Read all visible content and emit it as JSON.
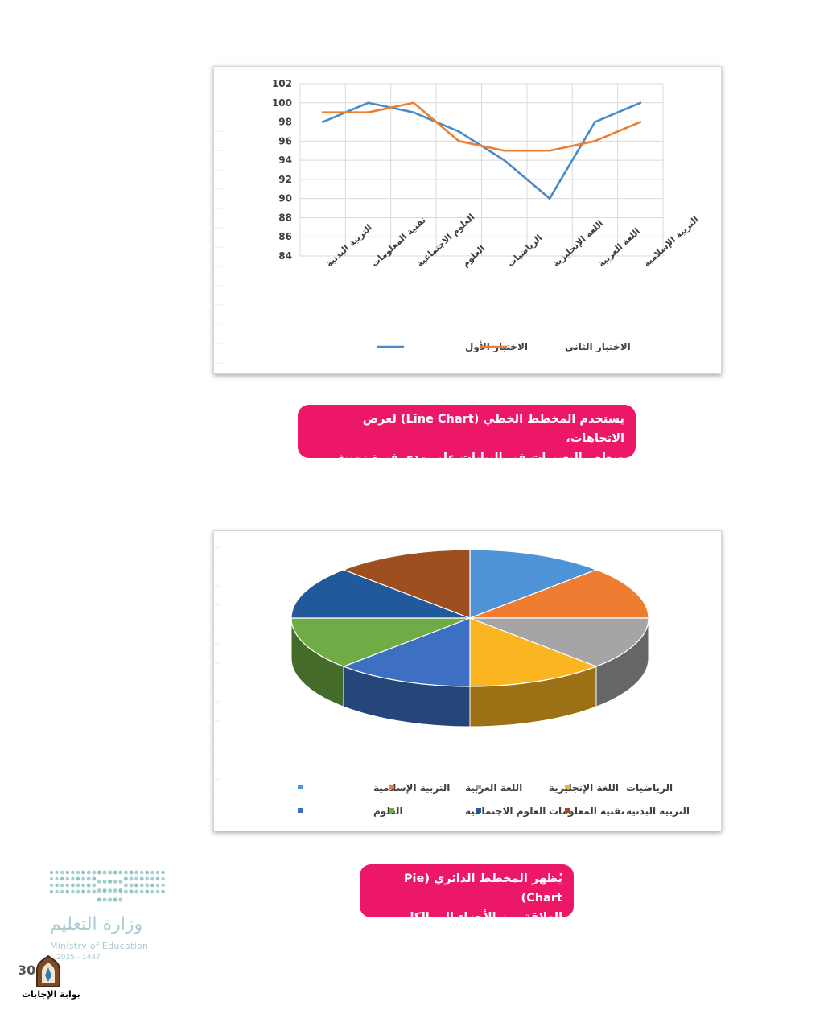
{
  "chart_data": [
    {
      "type": "line",
      "categories": [
        "التربية البدنية",
        "تقنية المعلومات",
        "العلوم الاجتماعية",
        "العلوم",
        "الرياضيات",
        "اللغة الإنجليزية",
        "اللغة العربية",
        "التربية الإسلامية"
      ],
      "series": [
        {
          "name": "الاختبار الأول",
          "color": "#4a8ac8",
          "values": [
            98,
            100,
            99,
            97,
            94,
            90,
            98,
            100
          ]
        },
        {
          "name": "الاختبار الثاني",
          "color": "#ee7d31",
          "values": [
            99,
            99,
            100,
            96,
            95,
            95,
            96,
            98
          ]
        }
      ],
      "ylim": [
        84,
        102
      ],
      "yticks": [
        "84",
        "86",
        "88",
        "90",
        "92",
        "94",
        "96",
        "98",
        "100",
        "102"
      ],
      "grid": true,
      "legend": "bottom"
    },
    {
      "type": "pie",
      "style": "3d",
      "slices": [
        {
          "label": "التربية الإسلامية",
          "value": 12.5,
          "color": "#4e92d8"
        },
        {
          "label": "اللغة العربية",
          "value": 12.5,
          "color": "#ef7d31"
        },
        {
          "label": "اللغة الإنجليزية",
          "value": 12.5,
          "color": "#a5a5a5"
        },
        {
          "label": "الرياضيات",
          "value": 12.5,
          "color": "#fbb520"
        },
        {
          "label": "العلوم",
          "value": 12.5,
          "color": "#3d6fc2"
        },
        {
          "label": "العلوم الاجتماعية",
          "value": 12.5,
          "color": "#6fac46"
        },
        {
          "label": "تقنية المعلومات",
          "value": 12.5,
          "color": "#22599a"
        },
        {
          "label": "التربية البدنية",
          "value": 12.5,
          "color": "#9d4f1f"
        }
      ],
      "legend": "bottom"
    }
  ],
  "callouts": {
    "line": [
      "يستخدم المخطط الخطي (Line Chart) لعرض الاتجاهات،",
      "ويظهر التغييرات في البيانات على مدى فترة زمنية."
    ],
    "pie": [
      "يُظهر المخطط الدائري (Pie Chart)",
      "العلاقة بين الأجزاء إلى الكل."
    ]
  },
  "footer": {
    "ministry_ar": "وزارة التعليم",
    "ministry_en": "Ministry of Education",
    "year": "2025 - 1447",
    "page_number": "30",
    "portal_label": "بوابة الإجابات"
  }
}
